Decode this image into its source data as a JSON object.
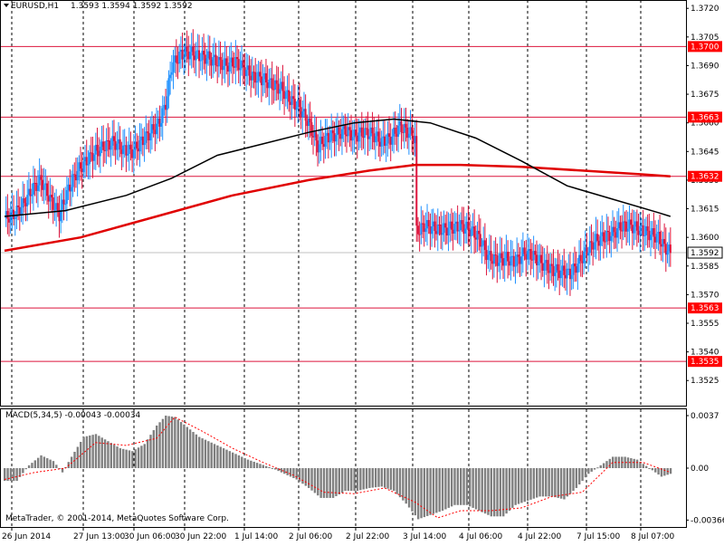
{
  "chart_header": {
    "symbol_timeframe": "EURUSD,H1",
    "ohlc": "1.3593 1.3594 1.3592 1.3592"
  },
  "macd_header": {
    "label": "MACD(5,34,5) -0.00043 -0.00034"
  },
  "copyright": "MetaTrader, © 2001-2014, MetaQuotes Software Corp.",
  "price_scale": {
    "ticks": [
      "1.3720",
      "1.3705",
      "1.3690",
      "1.3675",
      "1.3660",
      "1.3645",
      "1.3630",
      "1.3615",
      "1.3600",
      "1.3585",
      "1.3570",
      "1.3555",
      "1.3540",
      "1.3525"
    ],
    "current_price": "1.3592"
  },
  "macd_scale": {
    "ticks": [
      "0.0037",
      "0.00",
      "-0.00366"
    ]
  },
  "time_axis": [
    "26 Jun 2014",
    "27 Jun 13:00",
    "30 Jun 06:00",
    "30 Jun 22:00",
    "1 Jul 14:00",
    "2 Jul 06:00",
    "2 Jul 22:00",
    "3 Jul 14:00",
    "4 Jul 06:00",
    "4 Jul 22:00",
    "7 Jul 15:00",
    "8 Jul 07:00"
  ],
  "horizontal_levels": [
    "1.3700",
    "1.3663",
    "1.3632",
    "1.3563",
    "1.3535"
  ],
  "colors": {
    "background": "#ffffff",
    "grid": "#000000",
    "bull_candle": "#1e90ff",
    "bear_candle": "#dc143c",
    "level_line": "#dc143c",
    "level_label_bg": "#ff0000",
    "ma_fast": "#000000",
    "ma_slow": "#e00000",
    "macd_histogram": "#808080",
    "macd_signal": "#ff0000",
    "current_price_line": "#c0c0c0"
  },
  "chart_data": {
    "type": "candlestick",
    "symbol": "EURUSD",
    "timeframe": "H1",
    "ylim": [
      1.3518,
      1.3722
    ],
    "close_path": [
      [
        0,
        1.361
      ],
      [
        6,
        1.3612
      ],
      [
        12,
        1.3617
      ],
      [
        18,
        1.3625
      ],
      [
        24,
        1.363
      ],
      [
        30,
        1.362
      ],
      [
        36,
        1.3612
      ],
      [
        42,
        1.3625
      ],
      [
        48,
        1.3635
      ],
      [
        54,
        1.364
      ],
      [
        60,
        1.3645
      ],
      [
        66,
        1.3648
      ],
      [
        72,
        1.365
      ],
      [
        78,
        1.3646
      ],
      [
        84,
        1.3645
      ],
      [
        90,
        1.365
      ],
      [
        96,
        1.3655
      ],
      [
        102,
        1.366
      ],
      [
        106,
        1.367
      ],
      [
        110,
        1.369
      ],
      [
        116,
        1.3696
      ],
      [
        122,
        1.3697
      ],
      [
        128,
        1.3695
      ],
      [
        134,
        1.3694
      ],
      [
        140,
        1.3692
      ],
      [
        146,
        1.369
      ],
      [
        152,
        1.3692
      ],
      [
        158,
        1.3688
      ],
      [
        164,
        1.3684
      ],
      [
        170,
        1.3683
      ],
      [
        176,
        1.368
      ],
      [
        182,
        1.3678
      ],
      [
        188,
        1.3672
      ],
      [
        194,
        1.3668
      ],
      [
        200,
        1.366
      ],
      [
        206,
        1.3648
      ],
      [
        212,
        1.3652
      ],
      [
        218,
        1.3654
      ],
      [
        224,
        1.3656
      ],
      [
        230,
        1.3653
      ],
      [
        236,
        1.3655
      ],
      [
        242,
        1.3654
      ],
      [
        248,
        1.365
      ],
      [
        254,
        1.3652
      ],
      [
        260,
        1.3658
      ],
      [
        266,
        1.3655
      ],
      [
        270,
        1.3652
      ],
      [
        271,
        1.3603
      ],
      [
        276,
        1.3606
      ],
      [
        282,
        1.3605
      ],
      [
        288,
        1.3604
      ],
      [
        294,
        1.3605
      ],
      [
        300,
        1.3606
      ],
      [
        306,
        1.3604
      ],
      [
        312,
        1.36
      ],
      [
        318,
        1.359
      ],
      [
        324,
        1.3588
      ],
      [
        330,
        1.3589
      ],
      [
        336,
        1.3587
      ],
      [
        342,
        1.3592
      ],
      [
        348,
        1.359
      ],
      [
        354,
        1.3586
      ],
      [
        360,
        1.3583
      ],
      [
        366,
        1.3582
      ],
      [
        372,
        1.3581
      ],
      [
        376,
        1.3585
      ],
      [
        382,
        1.3592
      ],
      [
        388,
        1.3598
      ],
      [
        394,
        1.36
      ],
      [
        400,
        1.3602
      ],
      [
        406,
        1.3606
      ],
      [
        412,
        1.3606
      ],
      [
        418,
        1.3604
      ],
      [
        424,
        1.3602
      ],
      [
        430,
        1.36
      ],
      [
        434,
        1.3595
      ],
      [
        438,
        1.3592
      ]
    ],
    "ma_fast_path": [
      [
        0,
        1.3611
      ],
      [
        40,
        1.3614
      ],
      [
        80,
        1.3622
      ],
      [
        110,
        1.3631
      ],
      [
        140,
        1.3643
      ],
      [
        170,
        1.3649
      ],
      [
        200,
        1.3655
      ],
      [
        230,
        1.366
      ],
      [
        256,
        1.3662
      ],
      [
        280,
        1.366
      ],
      [
        310,
        1.3652
      ],
      [
        340,
        1.364
      ],
      [
        370,
        1.3627
      ],
      [
        400,
        1.362
      ],
      [
        430,
        1.3613
      ],
      [
        438,
        1.3611
      ]
    ],
    "ma_slow_path": [
      [
        0,
        1.3593
      ],
      [
        50,
        1.36
      ],
      [
        100,
        1.3611
      ],
      [
        150,
        1.3622
      ],
      [
        200,
        1.363
      ],
      [
        240,
        1.3635
      ],
      [
        270,
        1.3638
      ],
      [
        300,
        1.3638
      ],
      [
        340,
        1.3637
      ],
      [
        380,
        1.3635
      ],
      [
        420,
        1.3633
      ],
      [
        438,
        1.3632
      ]
    ],
    "macd_histogram": [
      [
        0,
        -0.0009
      ],
      [
        8,
        -0.0009
      ],
      [
        16,
        0.0002
      ],
      [
        24,
        0.0009
      ],
      [
        32,
        0.0005
      ],
      [
        38,
        -0.0003
      ],
      [
        44,
        0.0008
      ],
      [
        52,
        0.0022
      ],
      [
        60,
        0.0024
      ],
      [
        68,
        0.0019
      ],
      [
        76,
        0.0014
      ],
      [
        84,
        0.0012
      ],
      [
        92,
        0.0017
      ],
      [
        100,
        0.003
      ],
      [
        106,
        0.0037
      ],
      [
        112,
        0.0036
      ],
      [
        120,
        0.0029
      ],
      [
        128,
        0.0022
      ],
      [
        136,
        0.0018
      ],
      [
        144,
        0.0014
      ],
      [
        152,
        0.001
      ],
      [
        160,
        0.0006
      ],
      [
        168,
        0.0003
      ],
      [
        176,
        0.0
      ],
      [
        184,
        -0.0004
      ],
      [
        192,
        -0.0008
      ],
      [
        200,
        -0.0014
      ],
      [
        208,
        -0.0021
      ],
      [
        216,
        -0.0021
      ],
      [
        224,
        -0.0016
      ],
      [
        232,
        -0.0016
      ],
      [
        240,
        -0.0014
      ],
      [
        248,
        -0.0013
      ],
      [
        256,
        -0.0016
      ],
      [
        264,
        -0.0025
      ],
      [
        272,
        -0.0036
      ],
      [
        280,
        -0.0033
      ],
      [
        288,
        -0.003
      ],
      [
        296,
        -0.0026
      ],
      [
        304,
        -0.0026
      ],
      [
        312,
        -0.003
      ],
      [
        320,
        -0.0034
      ],
      [
        328,
        -0.0034
      ],
      [
        336,
        -0.0026
      ],
      [
        344,
        -0.0023
      ],
      [
        352,
        -0.002
      ],
      [
        360,
        -0.002
      ],
      [
        368,
        -0.0022
      ],
      [
        376,
        -0.0014
      ],
      [
        384,
        -0.0004
      ],
      [
        392,
        0.0002
      ],
      [
        400,
        0.0008
      ],
      [
        408,
        0.0008
      ],
      [
        416,
        0.0006
      ],
      [
        424,
        0.0
      ],
      [
        432,
        -0.0006
      ],
      [
        438,
        -0.0004
      ]
    ],
    "macd_signal": [
      [
        0,
        -0.0008
      ],
      [
        20,
        -0.0003
      ],
      [
        40,
        0.0
      ],
      [
        60,
        0.0018
      ],
      [
        80,
        0.0016
      ],
      [
        100,
        0.0021
      ],
      [
        112,
        0.0036
      ],
      [
        130,
        0.0026
      ],
      [
        150,
        0.0014
      ],
      [
        170,
        0.0004
      ],
      [
        190,
        -0.0005
      ],
      [
        210,
        -0.0017
      ],
      [
        230,
        -0.0018
      ],
      [
        250,
        -0.0014
      ],
      [
        270,
        -0.0024
      ],
      [
        285,
        -0.0035
      ],
      [
        300,
        -0.003
      ],
      [
        320,
        -0.003
      ],
      [
        340,
        -0.0028
      ],
      [
        360,
        -0.002
      ],
      [
        380,
        -0.0017
      ],
      [
        400,
        0.0004
      ],
      [
        420,
        0.0004
      ],
      [
        438,
        -0.0003
      ]
    ]
  }
}
